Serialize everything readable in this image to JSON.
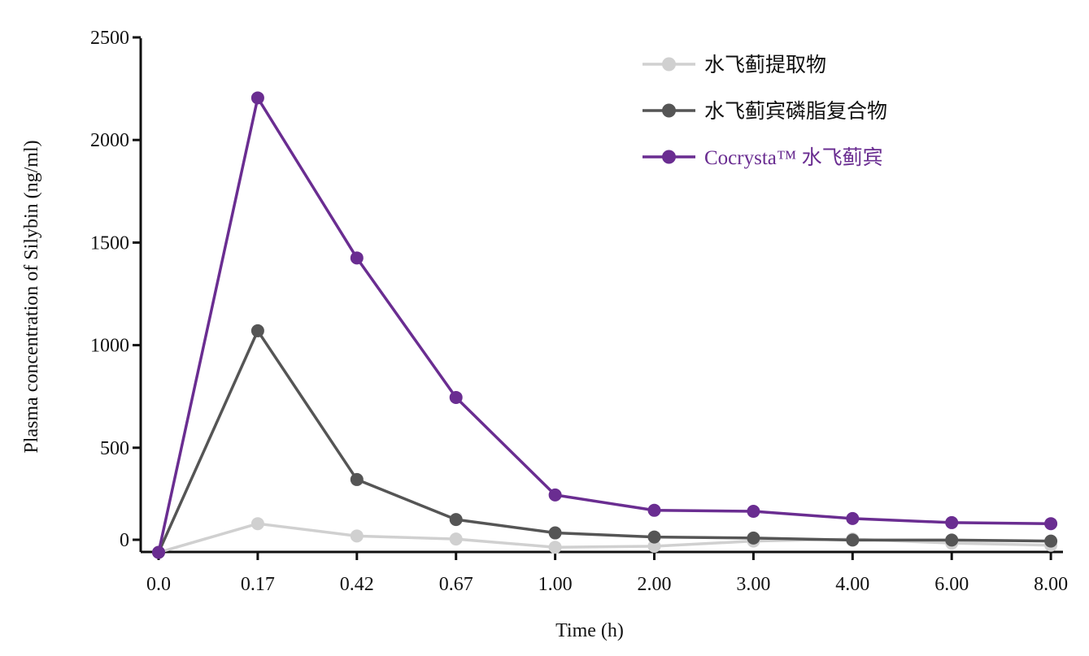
{
  "chart_data": {
    "type": "line",
    "title": "",
    "xlabel": "Time (h)",
    "ylabel": "Plasma concentration of Silybin (ng/ml)",
    "ylim": [
      -10,
      2500
    ],
    "categories": [
      "0.0",
      "0.17",
      "0.42",
      "0.67",
      "1.00",
      "2.00",
      "3.00",
      "4.00",
      "6.00",
      "8.00"
    ],
    "yticks": [
      0,
      500,
      1000,
      1500,
      2000,
      2500
    ],
    "grid": false,
    "legend_position": "top-right",
    "series": [
      {
        "name": "水飞蓟提取物",
        "color": "#d0d0d0",
        "values": [
          -10,
          130,
          70,
          55,
          15,
          20,
          45,
          55,
          35,
          25
        ]
      },
      {
        "name": "水飞蓟宾磷脂复合物",
        "color": "#555555",
        "values": [
          -10,
          1070,
          345,
          150,
          85,
          65,
          60,
          50,
          50,
          45
        ]
      },
      {
        "name": "Cocrysta™ 水飞蓟宾",
        "color": "#6a2d91",
        "values": [
          -10,
          2205,
          1425,
          745,
          270,
          195,
          190,
          155,
          135,
          130
        ]
      }
    ]
  }
}
